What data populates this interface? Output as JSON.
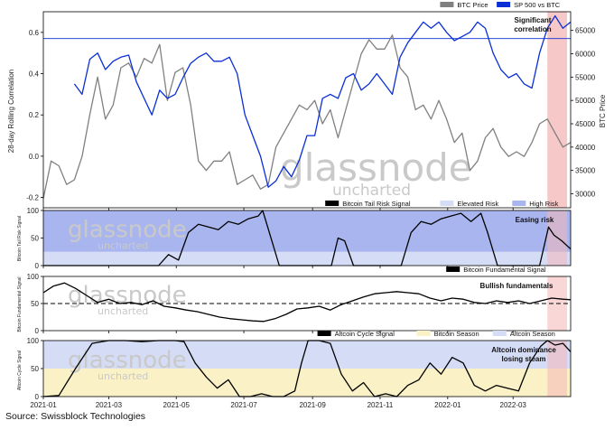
{
  "source": "Source: Swissblock Technologies",
  "watermark": {
    "brand": "glassnode",
    "sub": "uncharted"
  },
  "x_ticks": [
    "2021-01",
    "2021-03",
    "2021-05",
    "2021-07",
    "2021-09",
    "2021-11",
    "2022-01",
    "2022-03"
  ],
  "colors": {
    "btc_price": "#808080",
    "sp500_btc": "#0a2fd6",
    "highlight": "#f4b6b6",
    "high_risk": "#a9b5ee",
    "elevated_risk": "#d5dcf6",
    "bitcoin_season": "#faf1c6",
    "altcoin_season": "#d5dcf6"
  },
  "chart_data": [
    {
      "type": "line",
      "ylabel": "28-day Rolling Correlation",
      "y2label": "BTC Price",
      "ylim": [
        -0.25,
        0.7
      ],
      "y_ticks": [
        "0.6",
        "0.4",
        "0.2",
        "0.0",
        "-0.2"
      ],
      "y2lim": [
        27000,
        69000
      ],
      "y2_ticks": [
        "65000",
        "60000",
        "55000",
        "50000",
        "45000",
        "40000",
        "35000",
        "30000"
      ],
      "legend": [
        "BTC Price",
        "SP 500 vs BTC"
      ],
      "legend_placement": "top-right",
      "annotation": "Significant\ncorrelation",
      "reference_line": 0.57,
      "series": [
        {
          "name": "BTC Price",
          "axis": "right",
          "x": [
            "2021-01-01",
            "2021-01-08",
            "2021-01-15",
            "2021-01-22",
            "2021-01-29",
            "2021-02-05",
            "2021-02-12",
            "2021-02-19",
            "2021-02-26",
            "2021-03-05",
            "2021-03-12",
            "2021-03-19",
            "2021-03-26",
            "2021-04-02",
            "2021-04-09",
            "2021-04-16",
            "2021-04-23",
            "2021-04-30",
            "2021-05-07",
            "2021-05-14",
            "2021-05-21",
            "2021-05-28",
            "2021-06-04",
            "2021-06-11",
            "2021-06-18",
            "2021-06-25",
            "2021-07-02",
            "2021-07-09",
            "2021-07-16",
            "2021-07-23",
            "2021-07-30",
            "2021-08-06",
            "2021-08-13",
            "2021-08-20",
            "2021-08-27",
            "2021-09-03",
            "2021-09-10",
            "2021-09-17",
            "2021-09-24",
            "2021-10-01",
            "2021-10-08",
            "2021-10-15",
            "2021-10-22",
            "2021-10-29",
            "2021-11-05",
            "2021-11-12",
            "2021-11-19",
            "2021-11-26",
            "2021-12-03",
            "2021-12-10",
            "2021-12-17",
            "2021-12-24",
            "2021-12-31",
            "2022-01-07",
            "2022-01-14",
            "2022-01-21",
            "2022-01-28",
            "2022-02-04",
            "2022-02-11",
            "2022-02-18",
            "2022-02-25",
            "2022-03-04",
            "2022-03-11",
            "2022-03-18",
            "2022-03-25",
            "2022-04-01",
            "2022-04-08",
            "2022-04-15",
            "2022-04-22"
          ],
          "values": [
            29000,
            37000,
            36000,
            32000,
            33000,
            38000,
            47000,
            55000,
            46000,
            49000,
            57000,
            58000,
            55000,
            59000,
            58000,
            62000,
            50000,
            56000,
            57000,
            49000,
            37000,
            35000,
            37000,
            37000,
            39000,
            32000,
            33000,
            34000,
            31000,
            32000,
            40000,
            43000,
            46000,
            49000,
            48000,
            50000,
            45000,
            48000,
            42000,
            48000,
            54000,
            60000,
            63000,
            61000,
            61000,
            64000,
            57000,
            55000,
            48000,
            49000,
            46000,
            50000,
            46000,
            41000,
            43000,
            35000,
            37000,
            42000,
            44000,
            40000,
            38000,
            39000,
            38000,
            41000,
            45000,
            46000,
            43000,
            40000,
            41000
          ]
        },
        {
          "name": "SP 500 vs BTC",
          "axis": "left",
          "x": [
            "2021-01-29",
            "2021-02-05",
            "2021-02-12",
            "2021-02-19",
            "2021-02-26",
            "2021-03-05",
            "2021-03-12",
            "2021-03-19",
            "2021-03-26",
            "2021-04-02",
            "2021-04-09",
            "2021-04-16",
            "2021-04-23",
            "2021-04-30",
            "2021-05-07",
            "2021-05-14",
            "2021-05-21",
            "2021-05-28",
            "2021-06-04",
            "2021-06-11",
            "2021-06-18",
            "2021-06-25",
            "2021-07-02",
            "2021-07-09",
            "2021-07-16",
            "2021-07-23",
            "2021-07-30",
            "2021-08-06",
            "2021-08-13",
            "2021-08-20",
            "2021-08-27",
            "2021-09-03",
            "2021-09-10",
            "2021-09-17",
            "2021-09-24",
            "2021-10-01",
            "2021-10-08",
            "2021-10-15",
            "2021-10-22",
            "2021-10-29",
            "2021-11-05",
            "2021-11-12",
            "2021-11-19",
            "2021-11-26",
            "2021-12-03",
            "2021-12-10",
            "2021-12-17",
            "2021-12-24",
            "2021-12-31",
            "2022-01-07",
            "2022-01-14",
            "2022-01-21",
            "2022-01-28",
            "2022-02-04",
            "2022-02-11",
            "2022-02-18",
            "2022-02-25",
            "2022-03-04",
            "2022-03-11",
            "2022-03-18",
            "2022-03-25",
            "2022-04-01",
            "2022-04-08",
            "2022-04-15",
            "2022-04-22"
          ],
          "values": [
            0.35,
            0.3,
            0.47,
            0.5,
            0.42,
            0.46,
            0.48,
            0.49,
            0.36,
            0.28,
            0.2,
            0.32,
            0.28,
            0.3,
            0.38,
            0.45,
            0.48,
            0.5,
            0.46,
            0.46,
            0.48,
            0.4,
            0.2,
            0.1,
            0.0,
            -0.15,
            -0.12,
            -0.05,
            -0.1,
            -0.02,
            0.1,
            0.1,
            0.28,
            0.3,
            0.28,
            0.38,
            0.4,
            0.32,
            0.35,
            0.4,
            0.35,
            0.3,
            0.48,
            0.55,
            0.6,
            0.65,
            0.62,
            0.65,
            0.6,
            0.56,
            0.58,
            0.6,
            0.65,
            0.62,
            0.5,
            0.42,
            0.38,
            0.4,
            0.35,
            0.33,
            0.5,
            0.62,
            0.68,
            0.62,
            0.65
          ]
        }
      ]
    },
    {
      "type": "line",
      "ylabel": "Bitcoin Tail Risk Signal",
      "ylim": [
        0,
        100
      ],
      "y_ticks": [
        "0",
        "50",
        "100"
      ],
      "legend": [
        "Bitcoin Tail Risk Signal",
        "Elevated Risk",
        "High Risk"
      ],
      "legend_placement": "top-right",
      "annotation": "Easing risk",
      "bands": [
        {
          "name": "Elevated Risk",
          "from": 0,
          "to": 25
        },
        {
          "name": "High Risk",
          "from": 25,
          "to": 100
        }
      ],
      "series": [
        {
          "name": "Bitcoin Tail Risk Signal",
          "x": [
            "2021-01-01",
            "2021-04-15",
            "2021-04-24",
            "2021-05-03",
            "2021-05-12",
            "2021-05-21",
            "2021-05-30",
            "2021-06-08",
            "2021-06-17",
            "2021-06-26",
            "2021-07-05",
            "2021-07-14",
            "2021-07-18",
            "2021-07-24",
            "2021-08-02",
            "2021-09-18",
            "2021-09-24",
            "2021-09-30",
            "2021-10-08",
            "2021-11-20",
            "2021-11-29",
            "2021-12-08",
            "2021-12-17",
            "2021-12-26",
            "2022-01-04",
            "2022-01-13",
            "2022-01-22",
            "2022-01-31",
            "2022-02-06",
            "2022-02-15",
            "2022-03-25",
            "2022-04-02",
            "2022-04-07",
            "2022-04-14",
            "2022-04-22"
          ],
          "values": [
            0,
            0,
            20,
            10,
            60,
            75,
            70,
            65,
            80,
            75,
            85,
            90,
            100,
            60,
            0,
            0,
            50,
            45,
            0,
            0,
            60,
            80,
            75,
            85,
            90,
            95,
            80,
            95,
            60,
            0,
            0,
            70,
            55,
            45,
            30
          ]
        }
      ]
    },
    {
      "type": "line",
      "ylabel": "Bitcoin Fundamental Signal",
      "ylim": [
        0,
        100
      ],
      "y_ticks": [
        "0",
        "50",
        "100"
      ],
      "legend": [
        "Bitcoin Fundamental Signal"
      ],
      "legend_placement": "top-right",
      "annotation": "Bullish fundamentals",
      "reference_line": 50,
      "series": [
        {
          "name": "Bitcoin Fundamental Signal",
          "x": [
            "2021-01-01",
            "2021-01-10",
            "2021-01-20",
            "2021-01-30",
            "2021-02-09",
            "2021-02-19",
            "2021-03-01",
            "2021-03-11",
            "2021-03-21",
            "2021-03-31",
            "2021-04-10",
            "2021-04-20",
            "2021-04-30",
            "2021-05-10",
            "2021-05-20",
            "2021-05-30",
            "2021-06-09",
            "2021-06-19",
            "2021-06-29",
            "2021-07-09",
            "2021-07-19",
            "2021-07-29",
            "2021-08-08",
            "2021-08-18",
            "2021-08-28",
            "2021-09-07",
            "2021-09-17",
            "2021-09-27",
            "2021-10-07",
            "2021-10-17",
            "2021-10-27",
            "2021-11-06",
            "2021-11-16",
            "2021-11-26",
            "2021-12-06",
            "2021-12-16",
            "2021-12-26",
            "2022-01-05",
            "2022-01-15",
            "2022-01-25",
            "2022-02-04",
            "2022-02-14",
            "2022-02-24",
            "2022-03-06",
            "2022-03-16",
            "2022-03-26",
            "2022-04-05",
            "2022-04-15",
            "2022-04-22"
          ],
          "values": [
            70,
            82,
            88,
            78,
            65,
            52,
            58,
            50,
            52,
            48,
            55,
            45,
            42,
            38,
            35,
            30,
            25,
            22,
            20,
            18,
            17,
            22,
            30,
            40,
            42,
            45,
            38,
            48,
            55,
            62,
            68,
            70,
            72,
            70,
            68,
            60,
            55,
            60,
            58,
            52,
            50,
            55,
            52,
            55,
            50,
            55,
            60,
            58,
            57
          ]
        }
      ]
    },
    {
      "type": "line",
      "ylabel": "Altcoin Cycle Signal",
      "ylim": [
        0,
        100
      ],
      "y_ticks": [
        "0",
        "50",
        "100"
      ],
      "legend": [
        "Altcoin Cycle Signal",
        "Bitcoin Season",
        "Altcoin Season"
      ],
      "legend_placement": "top-right",
      "annotation": "Altcoin dominance\nlosing steam",
      "bands": [
        {
          "name": "Bitcoin Season",
          "from": 0,
          "to": 50
        },
        {
          "name": "Altcoin Season",
          "from": 50,
          "to": 100
        }
      ],
      "series": [
        {
          "name": "Altcoin Cycle Signal",
          "x": [
            "2021-01-01",
            "2021-01-15",
            "2021-01-30",
            "2021-02-14",
            "2021-03-01",
            "2021-03-16",
            "2021-03-31",
            "2021-04-15",
            "2021-04-30",
            "2021-05-08",
            "2021-05-18",
            "2021-05-28",
            "2021-06-07",
            "2021-06-17",
            "2021-06-27",
            "2021-07-07",
            "2021-07-17",
            "2021-07-27",
            "2021-08-06",
            "2021-08-16",
            "2021-08-22",
            "2021-08-28",
            "2021-09-07",
            "2021-09-17",
            "2021-09-27",
            "2021-10-07",
            "2021-10-17",
            "2021-10-27",
            "2021-11-06",
            "2021-11-16",
            "2021-11-26",
            "2021-12-06",
            "2021-12-16",
            "2021-12-26",
            "2022-01-05",
            "2022-01-15",
            "2022-01-25",
            "2022-02-04",
            "2022-02-14",
            "2022-02-24",
            "2022-03-06",
            "2022-03-16",
            "2022-03-26",
            "2022-04-01",
            "2022-04-08",
            "2022-04-15",
            "2022-04-22"
          ],
          "values": [
            0,
            2,
            50,
            95,
            100,
            100,
            98,
            100,
            100,
            98,
            60,
            35,
            15,
            30,
            0,
            0,
            5,
            0,
            0,
            10,
            60,
            100,
            100,
            95,
            40,
            10,
            25,
            0,
            5,
            0,
            20,
            30,
            60,
            40,
            70,
            60,
            20,
            10,
            20,
            15,
            10,
            60,
            90,
            100,
            92,
            95,
            80
          ]
        }
      ]
    }
  ]
}
